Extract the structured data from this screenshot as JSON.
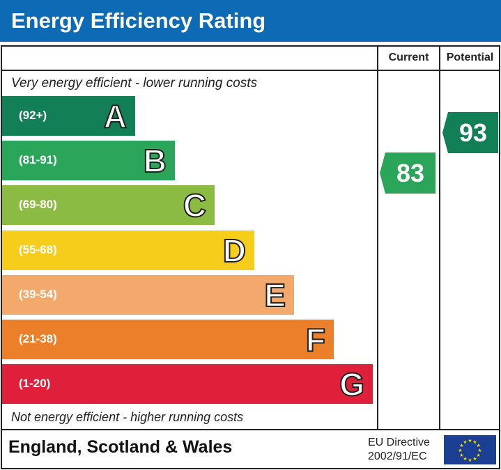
{
  "title": "Energy Efficiency Rating",
  "columns": {
    "current": "Current",
    "potential": "Potential"
  },
  "top_note": "Very energy efficient - lower running costs",
  "bottom_note": "Not energy efficient - higher running costs",
  "bands": [
    {
      "letter": "A",
      "range": "(92+)",
      "color": "#127f57"
    },
    {
      "letter": "B",
      "range": "(81-91)",
      "color": "#2ba55a"
    },
    {
      "letter": "C",
      "range": "(69-80)",
      "color": "#8cbb44"
    },
    {
      "letter": "D",
      "range": "(55-68)",
      "color": "#f6cd1a"
    },
    {
      "letter": "E",
      "range": "(39-54)",
      "color": "#f2a96b"
    },
    {
      "letter": "F",
      "range": "(21-38)",
      "color": "#ec7f2a"
    },
    {
      "letter": "G",
      "range": "(1-20)",
      "color": "#e0203b"
    }
  ],
  "current": {
    "value": "83",
    "band": "B",
    "color": "#2ba55a"
  },
  "potential": {
    "value": "93",
    "band": "A",
    "color": "#127f57"
  },
  "footer": {
    "region": "England, Scotland & Wales",
    "directive_line1": "EU Directive",
    "directive_line2": "2002/91/EC"
  },
  "header_color": "#0d6bb5"
}
